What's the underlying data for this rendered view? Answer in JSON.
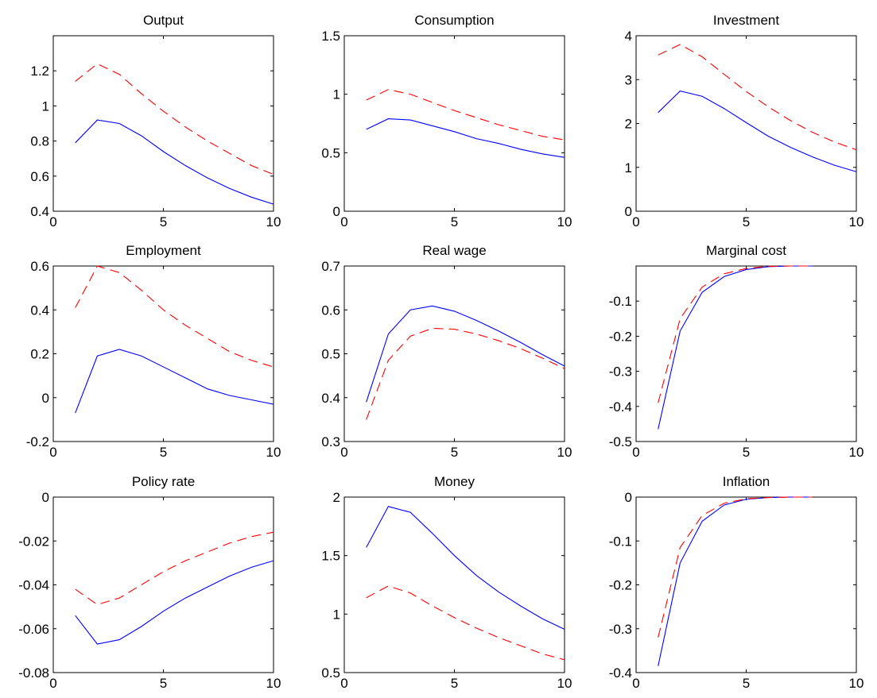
{
  "chart_data": [
    {
      "type": "line",
      "title": "Output",
      "xlim": [
        0,
        10
      ],
      "ylim": [
        0.4,
        1.4
      ],
      "xticks": [
        0,
        5,
        10
      ],
      "yticks": [
        0.4,
        0.6,
        0.8,
        1,
        1.2
      ],
      "ytick_labels": [
        "0.4",
        "0.6",
        "0.8",
        "1",
        "1.2"
      ],
      "x": [
        1,
        2,
        3,
        4,
        5,
        6,
        7,
        8,
        9,
        10
      ],
      "series": [
        {
          "style": "solid",
          "color": "#0000ff",
          "values": [
            0.79,
            0.92,
            0.9,
            0.83,
            0.74,
            0.66,
            0.59,
            0.53,
            0.48,
            0.44
          ]
        },
        {
          "style": "dashed",
          "color": "#ff0000",
          "values": [
            1.14,
            1.24,
            1.18,
            1.07,
            0.97,
            0.88,
            0.8,
            0.73,
            0.66,
            0.61
          ]
        }
      ]
    },
    {
      "type": "line",
      "title": "Consumption",
      "xlim": [
        0,
        10
      ],
      "ylim": [
        0,
        1.5
      ],
      "xticks": [
        0,
        5,
        10
      ],
      "yticks": [
        0,
        0.5,
        1,
        1.5
      ],
      "ytick_labels": [
        "0",
        "0.5",
        "1",
        "1.5"
      ],
      "x": [
        1,
        2,
        3,
        4,
        5,
        6,
        7,
        8,
        9,
        10
      ],
      "series": [
        {
          "style": "solid",
          "color": "#0000ff",
          "values": [
            0.7,
            0.79,
            0.78,
            0.73,
            0.68,
            0.62,
            0.58,
            0.53,
            0.49,
            0.46
          ]
        },
        {
          "style": "dashed",
          "color": "#ff0000",
          "values": [
            0.95,
            1.04,
            1.0,
            0.93,
            0.86,
            0.8,
            0.74,
            0.69,
            0.64,
            0.61
          ]
        }
      ]
    },
    {
      "type": "line",
      "title": "Investment",
      "xlim": [
        0,
        10
      ],
      "ylim": [
        0,
        4
      ],
      "xticks": [
        0,
        5,
        10
      ],
      "yticks": [
        0,
        1,
        2,
        3,
        4
      ],
      "ytick_labels": [
        "0",
        "1",
        "2",
        "3",
        "4"
      ],
      "x": [
        1,
        2,
        3,
        4,
        5,
        6,
        7,
        8,
        9,
        10
      ],
      "series": [
        {
          "style": "solid",
          "color": "#0000ff",
          "values": [
            2.25,
            2.74,
            2.62,
            2.34,
            2.02,
            1.71,
            1.46,
            1.24,
            1.05,
            0.9
          ]
        },
        {
          "style": "dashed",
          "color": "#ff0000",
          "values": [
            3.56,
            3.8,
            3.52,
            3.12,
            2.73,
            2.38,
            2.07,
            1.8,
            1.58,
            1.4
          ]
        }
      ]
    },
    {
      "type": "line",
      "title": "Employment",
      "xlim": [
        0,
        10
      ],
      "ylim": [
        -0.2,
        0.6
      ],
      "xticks": [
        0,
        5,
        10
      ],
      "yticks": [
        -0.2,
        0,
        0.2,
        0.4,
        0.6
      ],
      "ytick_labels": [
        "-0.2",
        "0",
        "0.2",
        "0.4",
        "0.6"
      ],
      "x": [
        1,
        2,
        3,
        4,
        5,
        6,
        7,
        8,
        9,
        10
      ],
      "series": [
        {
          "style": "solid",
          "color": "#0000ff",
          "values": [
            -0.07,
            0.19,
            0.22,
            0.19,
            0.14,
            0.09,
            0.04,
            0.01,
            -0.01,
            -0.03
          ]
        },
        {
          "style": "dashed",
          "color": "#ff0000",
          "values": [
            0.41,
            0.6,
            0.57,
            0.49,
            0.4,
            0.33,
            0.27,
            0.21,
            0.17,
            0.14
          ]
        }
      ]
    },
    {
      "type": "line",
      "title": "Real wage",
      "xlim": [
        0,
        10
      ],
      "ylim": [
        0.3,
        0.7
      ],
      "xticks": [
        0,
        5,
        10
      ],
      "yticks": [
        0.3,
        0.4,
        0.5,
        0.6,
        0.7
      ],
      "ytick_labels": [
        "0.3",
        "0.4",
        "0.5",
        "0.6",
        "0.7"
      ],
      "x": [
        1,
        2,
        3,
        4,
        5,
        6,
        7,
        8,
        9,
        10
      ],
      "series": [
        {
          "style": "solid",
          "color": "#0000ff",
          "values": [
            0.39,
            0.545,
            0.6,
            0.609,
            0.597,
            0.576,
            0.552,
            0.526,
            0.498,
            0.472
          ]
        },
        {
          "style": "dashed",
          "color": "#ff0000",
          "values": [
            0.35,
            0.485,
            0.54,
            0.558,
            0.556,
            0.545,
            0.53,
            0.512,
            0.49,
            0.466
          ]
        }
      ]
    },
    {
      "type": "line",
      "title": "Marginal cost",
      "xlim": [
        0,
        10
      ],
      "ylim": [
        -0.5,
        0
      ],
      "xticks": [
        0,
        5,
        10
      ],
      "yticks": [
        -0.5,
        -0.4,
        -0.3,
        -0.2,
        -0.1
      ],
      "ytick_labels": [
        "-0.5",
        "-0.4",
        "-0.3",
        "-0.2",
        "-0.1"
      ],
      "x": [
        1,
        2,
        3,
        4,
        5,
        6,
        7,
        8
      ],
      "series": [
        {
          "style": "solid",
          "color": "#0000ff",
          "values": [
            -0.465,
            -0.185,
            -0.075,
            -0.03,
            -0.01,
            -0.002,
            0,
            0
          ]
        },
        {
          "style": "dashed",
          "color": "#ff0000",
          "values": [
            -0.39,
            -0.15,
            -0.06,
            -0.022,
            -0.007,
            -0.001,
            0,
            0
          ]
        }
      ]
    },
    {
      "type": "line",
      "title": "Policy rate",
      "xlim": [
        0,
        10
      ],
      "ylim": [
        -0.08,
        0
      ],
      "xticks": [
        0,
        5,
        10
      ],
      "yticks": [
        -0.08,
        -0.06,
        -0.04,
        -0.02,
        0
      ],
      "ytick_labels": [
        "-0.08",
        "-0.06",
        "-0.04",
        "-0.02",
        "0"
      ],
      "x": [
        1,
        2,
        3,
        4,
        5,
        6,
        7,
        8,
        9,
        10
      ],
      "series": [
        {
          "style": "solid",
          "color": "#0000ff",
          "values": [
            -0.054,
            -0.067,
            -0.065,
            -0.059,
            -0.052,
            -0.046,
            -0.041,
            -0.036,
            -0.032,
            -0.029
          ]
        },
        {
          "style": "dashed",
          "color": "#ff0000",
          "values": [
            -0.042,
            -0.049,
            -0.046,
            -0.04,
            -0.034,
            -0.029,
            -0.025,
            -0.021,
            -0.018,
            -0.016
          ]
        }
      ]
    },
    {
      "type": "line",
      "title": "Money",
      "xlim": [
        0,
        10
      ],
      "ylim": [
        0.5,
        2
      ],
      "xticks": [
        0,
        5,
        10
      ],
      "yticks": [
        0.5,
        1,
        1.5,
        2
      ],
      "ytick_labels": [
        "0.5",
        "1",
        "1.5",
        "2"
      ],
      "x": [
        1,
        2,
        3,
        4,
        5,
        6,
        7,
        8,
        9,
        10
      ],
      "series": [
        {
          "style": "solid",
          "color": "#0000ff",
          "values": [
            1.57,
            1.92,
            1.87,
            1.69,
            1.5,
            1.33,
            1.19,
            1.07,
            0.96,
            0.87
          ]
        },
        {
          "style": "dashed",
          "color": "#ff0000",
          "values": [
            1.14,
            1.24,
            1.18,
            1.07,
            0.97,
            0.88,
            0.8,
            0.73,
            0.66,
            0.61
          ]
        }
      ]
    },
    {
      "type": "line",
      "title": "Inflation",
      "xlim": [
        0,
        10
      ],
      "ylim": [
        -0.4,
        0
      ],
      "xticks": [
        0,
        5,
        10
      ],
      "yticks": [
        -0.4,
        -0.3,
        -0.2,
        -0.1,
        0
      ],
      "ytick_labels": [
        "-0.4",
        "-0.3",
        "-0.2",
        "-0.1",
        "0"
      ],
      "x": [
        1,
        2,
        3,
        4,
        5,
        6,
        7,
        8
      ],
      "series": [
        {
          "style": "solid",
          "color": "#0000ff",
          "values": [
            -0.385,
            -0.15,
            -0.055,
            -0.018,
            -0.005,
            -0.001,
            0,
            0
          ]
        },
        {
          "style": "dashed",
          "color": "#ff0000",
          "values": [
            -0.32,
            -0.115,
            -0.042,
            -0.014,
            -0.004,
            -0.001,
            0,
            0
          ]
        }
      ]
    }
  ]
}
